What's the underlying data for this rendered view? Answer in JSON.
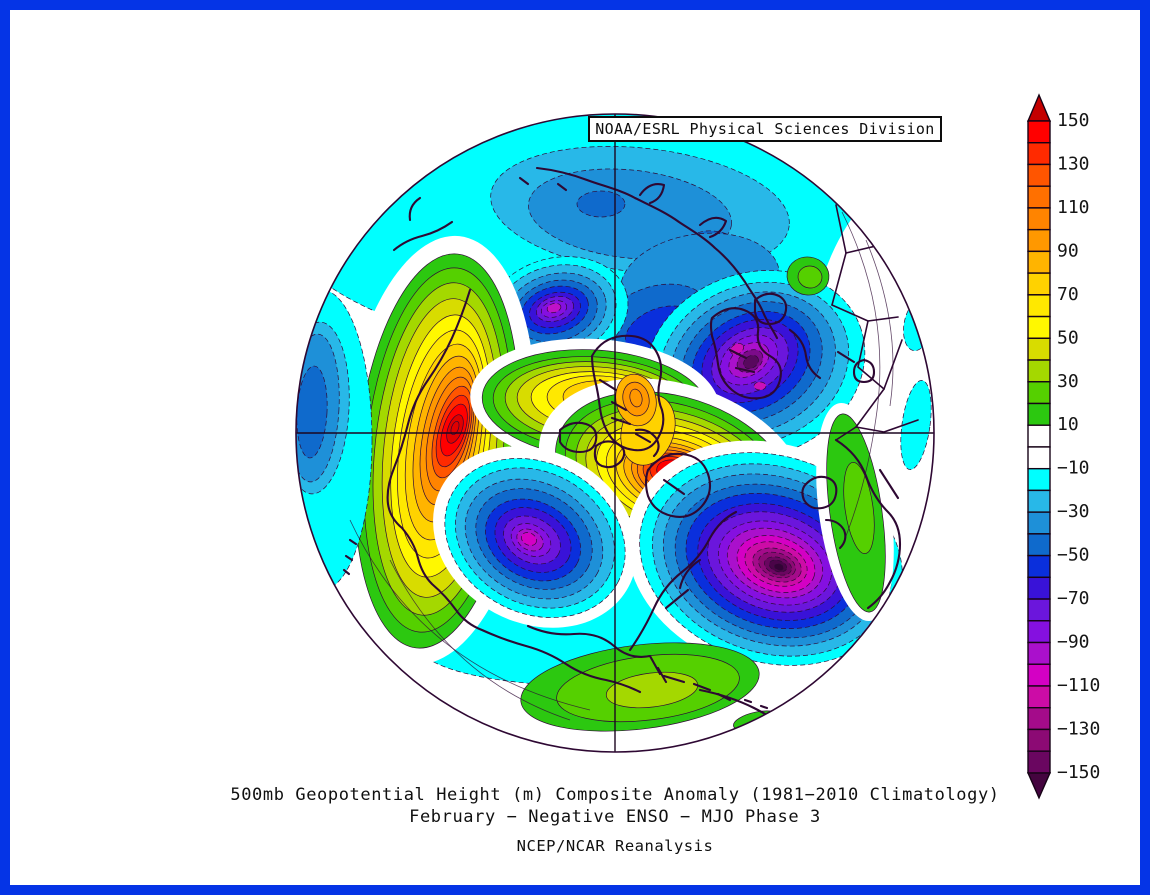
{
  "frame": {
    "color": "#0534e6"
  },
  "header": {
    "title": "NOAA/ESRL Physical Sciences Division"
  },
  "captions": {
    "line1": "500mb Geopotential Height (m) Composite Anomaly (1981−2010 Climatology)",
    "line2": "February − Negative ENSO − MJO Phase 3",
    "line3": "NCEP/NCAR Reanalysis"
  },
  "colorbar": {
    "value_range": [
      -150,
      150
    ],
    "cell_step": 10,
    "tick_labels": [
      "150",
      "130",
      "110",
      "90",
      "70",
      "50",
      "30",
      "10",
      "−10",
      "−30",
      "−50",
      "−70",
      "−90",
      "−110",
      "−130",
      "−150"
    ],
    "cell_colors_top_to_bottom": [
      "#ff0000",
      "#ff2a00",
      "#ff5500",
      "#ff7000",
      "#ff8400",
      "#ff9800",
      "#ffb400",
      "#ffd200",
      "#ffe800",
      "#fff800",
      "#d8dc00",
      "#a4d800",
      "#55d000",
      "#2cc810",
      "#ffffff",
      "#ffffff",
      "#00ffff",
      "#28b8e8",
      "#1e90d8",
      "#0f6acc",
      "#0a2fdc",
      "#3912d8",
      "#6b16dc",
      "#8510e0",
      "#aa10cc",
      "#d400c4",
      "#cc0ca6",
      "#a40b8a",
      "#8c0a74",
      "#6a0660"
    ],
    "arrow_top_color": "#c40000",
    "arrow_bottom_color": "#44043f"
  },
  "palette": {
    "cyan": "#00ffff",
    "blue1": "#28b8e8",
    "blue2": "#1e90d8",
    "blue3": "#0f6acc",
    "blue4": "#0a2fdc",
    "violet1": "#3912d8",
    "violet2": "#6b16dc",
    "violet3": "#8510e0",
    "mag1": "#aa10cc",
    "mag2": "#d400c4",
    "mag2b": "#cc10b8",
    "mag3": "#cc0ca6",
    "mag4": "#a40b8a",
    "mag5": "#8c0a74",
    "mag6": "#6a0660",
    "low7": "#4a0448",
    "low8": "#330236",
    "lowF1": "#7c0b8a",
    "lowF2": "#58085e",
    "magE": "#c012c8",
    "white": "#ffffff",
    "green1": "#2cc810",
    "green2": "#55d000",
    "green3": "#a4d800",
    "green4": "#d8dc00",
    "yellow1": "#fff800",
    "yellow2": "#ffe800",
    "amber": "#ffd200",
    "orange1": "#ffb400",
    "orange2": "#ff9800",
    "orange3": "#ff8400",
    "orange4": "#ff5500",
    "red1": "#ff2a00",
    "red2": "#ff0000",
    "red3": "#e00000",
    "coast": "#2e0833",
    "contour": "#2f0b36",
    "crosshair": "#1c0620"
  },
  "map": {
    "projection": "Northern Hemisphere polar stereographic",
    "anomaly_features": [
      {
        "name": "strong positive anomaly over North Pacific",
        "approx_peak": "+150 m"
      },
      {
        "name": "positive anomaly over eastern Canada / Hudson Bay",
        "approx_peak": "+140 m"
      },
      {
        "name": "positive ridge near the pole with local orange maximum",
        "approx_peak": "+100 m"
      },
      {
        "name": "strong negative anomaly over North Atlantic",
        "approx_peak": "−150 m"
      },
      {
        "name": "negative anomaly over Scandinavia / western Russia",
        "approx_peak": "−120 m"
      },
      {
        "name": "negative anomaly over western North America",
        "approx_peak": "−110 m"
      },
      {
        "name": "negative anomaly over eastern Siberia",
        "approx_peak": "−100 m"
      },
      {
        "name": "negative band across the Arctic and Siberia",
        "approx_peak": "−50 m"
      },
      {
        "name": "weak positive patches over Europe, Africa margin and Caribbean",
        "approx_peak": "+30 m"
      }
    ]
  }
}
